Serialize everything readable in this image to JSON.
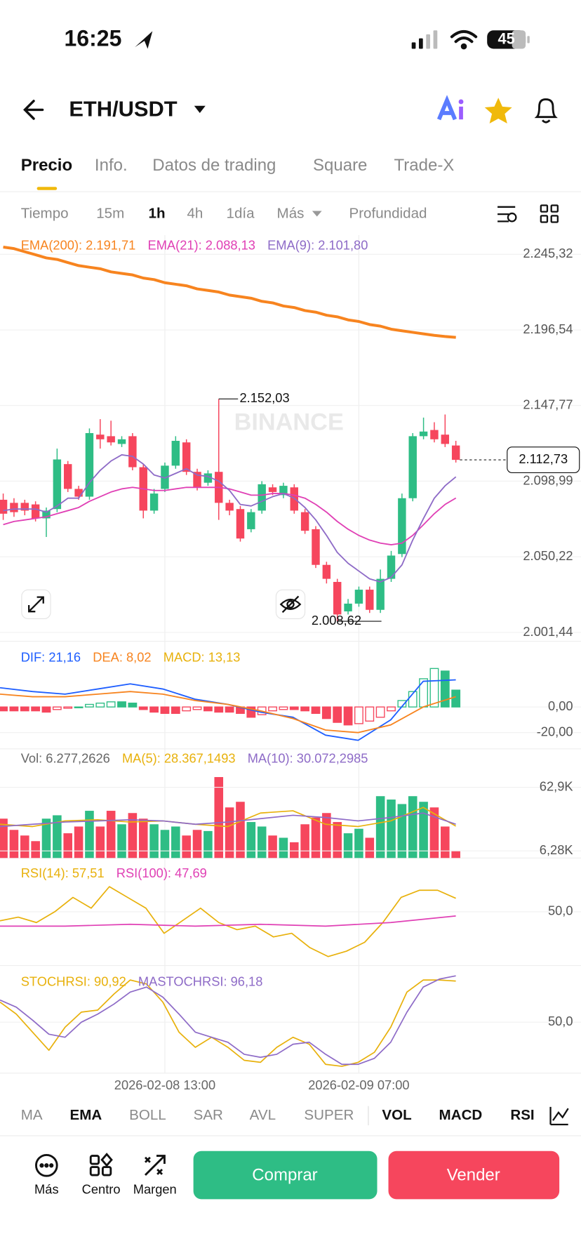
{
  "status_bar": {
    "time": "16:25",
    "battery": "45"
  },
  "header": {
    "pair": "ETH/USDT"
  },
  "tabs": [
    "Precio",
    "Info.",
    "Datos de trading",
    "Square",
    "Trade-X"
  ],
  "intervals": [
    "Tiempo",
    "15m",
    "1h",
    "4h",
    "1día",
    "Más",
    "Profundidad"
  ],
  "price_chart": {
    "ylim": [
      2001.44,
      2245.32
    ],
    "yticks": [
      {
        "value": 2245.32,
        "label": "2.245,32"
      },
      {
        "value": 2196.54,
        "label": "2.196,54"
      },
      {
        "value": 2147.77,
        "label": "2.147,77"
      },
      {
        "value": 2098.99,
        "label": "2.098,99"
      },
      {
        "value": 2050.22,
        "label": "2.050,22"
      },
      {
        "value": 2001.44,
        "label": "2.001,44"
      }
    ],
    "up_color": "#2ebd85",
    "down_color": "#f6465d",
    "open": [
      2087,
      2085,
      2085,
      2084,
      2075,
      2081,
      2110,
      2094,
      2089,
      2129,
      2128,
      2123,
      2128,
      2108,
      2080,
      2094,
      2109,
      2124,
      2105,
      2098,
      2105,
      2085,
      2081,
      2068,
      2080,
      2095,
      2090,
      2095,
      2079,
      2068,
      2045,
      2034,
      2015,
      2020,
      2029,
      2016,
      2036,
      2052,
      2088,
      2128,
      2132,
      2129,
      2122
    ],
    "high": [
      2091,
      2088,
      2087,
      2086,
      2082,
      2120,
      2112,
      2096,
      2133,
      2139,
      2138,
      2128,
      2130,
      2110,
      2094,
      2111,
      2128,
      2126,
      2107,
      2106,
      2152.03,
      2087,
      2083,
      2081,
      2099,
      2097,
      2098,
      2097,
      2081,
      2070,
      2047,
      2036,
      2023,
      2031,
      2031,
      2042,
      2054,
      2091,
      2130,
      2140,
      2137,
      2142,
      2125
    ],
    "low": [
      2074,
      2076,
      2077,
      2073,
      2063,
      2079,
      2092,
      2087,
      2087,
      2120,
      2122,
      2121,
      2106,
      2075,
      2078,
      2092,
      2107,
      2103,
      2093,
      2096,
      2074,
      2077,
      2060,
      2066,
      2078,
      2090,
      2088,
      2078,
      2065,
      2043,
      2033,
      2008.62,
      2013,
      2018,
      2014,
      2014,
      2034,
      2050,
      2086,
      2126,
      2124,
      2121,
      2111
    ],
    "close": [
      2078,
      2079,
      2080,
      2075,
      2080,
      2113,
      2094,
      2089,
      2130,
      2126,
      2124,
      2126,
      2108,
      2080,
      2091,
      2109,
      2125,
      2105,
      2095,
      2104,
      2085,
      2080,
      2062,
      2079,
      2097,
      2092,
      2096,
      2080,
      2067,
      2045,
      2036,
      2013,
      2020,
      2029,
      2016,
      2036,
      2051,
      2088,
      2128,
      2131,
      2126,
      2123,
      2112.73
    ],
    "ema": [
      {
        "label": "EMA(200): 2.191,71",
        "color": "#f7841f",
        "values": [
          2250,
          2249,
          2247,
          2245,
          2243,
          2242,
          2240,
          2238,
          2237,
          2236,
          2234,
          2233,
          2232,
          2230,
          2229,
          2227,
          2226,
          2225,
          2223,
          2222,
          2221,
          2219,
          2218,
          2217,
          2215,
          2214,
          2212,
          2211,
          2209,
          2208,
          2206,
          2205,
          2203,
          2202,
          2200,
          2199,
          2197,
          2196,
          2195,
          2194,
          2193,
          2192.3,
          2191.71
        ]
      },
      {
        "label": "EMA(21): 2.088,13",
        "color": "#e040b5",
        "values": [
          2071,
          2073,
          2074,
          2075,
          2076,
          2078,
          2080,
          2082,
          2086,
          2089,
          2092,
          2094,
          2095,
          2094,
          2093,
          2093,
          2094,
          2095,
          2095,
          2095,
          2095,
          2094,
          2092,
          2090,
          2090,
          2091,
          2091,
          2090,
          2088,
          2084,
          2079,
          2073,
          2068,
          2064,
          2061,
          2059,
          2058,
          2059,
          2064,
          2071,
          2078,
          2084,
          2088.13
        ]
      },
      {
        "label": "EMA(9): 2.101,80",
        "color": "#8e6bc7",
        "values": [
          2080,
          2081,
          2081,
          2081,
          2079,
          2083,
          2088,
          2088,
          2098,
          2106,
          2112,
          2116,
          2115,
          2110,
          2103,
          2101,
          2104,
          2107,
          2103,
          2102,
          2099,
          2093,
          2084,
          2083,
          2086,
          2089,
          2091,
          2088,
          2082,
          2074,
          2064,
          2053,
          2046,
          2041,
          2036,
          2034,
          2037,
          2045,
          2061,
          2075,
          2088,
          2096,
          2101.8
        ]
      }
    ],
    "high_label": "2.152,03",
    "low_label": "2.008,62",
    "last_label": "2.112,73",
    "watermark": "BINANCE"
  },
  "x_labels": [
    {
      "label": "2026-02-08 13:00",
      "candle": 15
    },
    {
      "label": "2026-02-09 07:00",
      "candle": 33
    }
  ],
  "macd": {
    "ylim": [
      -32,
      50
    ],
    "yticks": [
      {
        "value": 0,
        "label": "0,00"
      },
      {
        "value": -20,
        "label": "-20,00"
      }
    ],
    "labels": [
      {
        "text": "DIF: 21,16",
        "color": "#1e5eff"
      },
      {
        "text": "DEA: 8,02",
        "color": "#f7841f"
      },
      {
        "text": "MACD: 13,13",
        "color": "#e8b10c"
      }
    ],
    "histogram": [
      -3,
      -3,
      -3,
      -3,
      -4,
      -2,
      -1,
      0,
      2,
      3,
      4,
      4,
      3,
      -2,
      -4,
      -5,
      -5,
      -3,
      -2,
      -3,
      -4,
      -4,
      -5,
      -8,
      -6,
      -3,
      -2,
      -2,
      -3,
      -5,
      -9,
      -12,
      -14,
      -13,
      -11,
      -8,
      -3,
      5,
      12,
      22,
      30,
      28,
      13.13
    ],
    "dif": [
      15,
      12,
      10,
      14,
      18,
      14,
      6,
      2,
      -4,
      -8,
      -22,
      -26,
      -10,
      20,
      21.16
    ],
    "dea": [
      10,
      8,
      8,
      10,
      12,
      10,
      5,
      2,
      -3,
      -9,
      -18,
      -20,
      -14,
      0,
      8.02
    ]
  },
  "volume": {
    "ylim": [
      0,
      80
    ],
    "yticks": [
      {
        "value": 62.9,
        "label": "62,9K"
      },
      {
        "value": 6.28,
        "label": "6,28K"
      }
    ],
    "labels": [
      {
        "text": "Vol: 6.277,2626",
        "color": "#666666"
      },
      {
        "text": "MA(5): 28.367,1493",
        "color": "#e8b10c"
      },
      {
        "text": "MA(10): 30.072,2985",
        "color": "#8e6bc7"
      }
    ],
    "values": [
      35,
      25,
      20,
      15,
      35,
      38,
      22,
      28,
      42,
      28,
      42,
      30,
      40,
      35,
      30,
      25,
      28,
      20,
      25,
      24,
      72,
      45,
      50,
      32,
      28,
      20,
      18,
      14,
      30,
      36,
      40,
      32,
      22,
      26,
      18,
      55,
      52,
      48,
      55,
      50,
      45,
      28,
      6.2772626
    ],
    "ma5": [
      30,
      28,
      33,
      34,
      32,
      33,
      30,
      28,
      40,
      42,
      30,
      28,
      33,
      45,
      28.3671493
    ],
    "ma10": [
      28,
      30,
      32,
      33,
      34,
      33,
      30,
      32,
      35,
      38,
      36,
      33,
      36,
      40,
      30.0722985
    ]
  },
  "rsi": {
    "ylim": [
      20,
      80
    ],
    "yticks": [
      {
        "value": 50,
        "label": "50,0"
      }
    ],
    "labels": [
      {
        "text": "RSI(14): 57,51",
        "color": "#e8b10c"
      },
      {
        "text": "RSI(100): 47,69",
        "color": "#e040b5"
      }
    ],
    "rsi14": [
      45,
      47,
      44,
      50,
      58,
      52,
      64,
      58,
      52,
      38,
      45,
      52,
      44,
      40,
      42,
      36,
      38,
      30,
      25,
      28,
      33,
      44,
      58,
      62,
      62,
      57.51
    ],
    "rsi100": [
      42,
      42,
      43,
      42,
      43,
      42,
      44,
      47.69
    ]
  },
  "stochrsi": {
    "ylim": [
      0,
      100
    ],
    "yticks": [
      {
        "value": 50,
        "label": "50,0"
      }
    ],
    "labels": [
      {
        "text": "STOCHRSI: 90,92",
        "color": "#e8b10c"
      },
      {
        "text": "MASTOCHRSI: 96,18",
        "color": "#8e6bc7"
      }
    ],
    "stoch": [
      70,
      58,
      40,
      22,
      45,
      60,
      62,
      78,
      92,
      88,
      70,
      40,
      25,
      35,
      25,
      12,
      10,
      25,
      35,
      28,
      8,
      6,
      10,
      20,
      45,
      80,
      92,
      92,
      90.92
    ],
    "mastoch": [
      72,
      65,
      52,
      38,
      35,
      50,
      58,
      68,
      80,
      85,
      75,
      58,
      40,
      35,
      30,
      18,
      15,
      18,
      28,
      30,
      18,
      8,
      8,
      14,
      30,
      60,
      85,
      93,
      96.18
    ]
  },
  "indicator_tabs": [
    "MA",
    "EMA",
    "BOLL",
    "SAR",
    "AVL",
    "SUPER",
    "VOL",
    "MACD",
    "RSI"
  ],
  "actions": [
    "Más",
    "Centro",
    "Margen"
  ],
  "buy": "Comprar",
  "sell": "Vender"
}
